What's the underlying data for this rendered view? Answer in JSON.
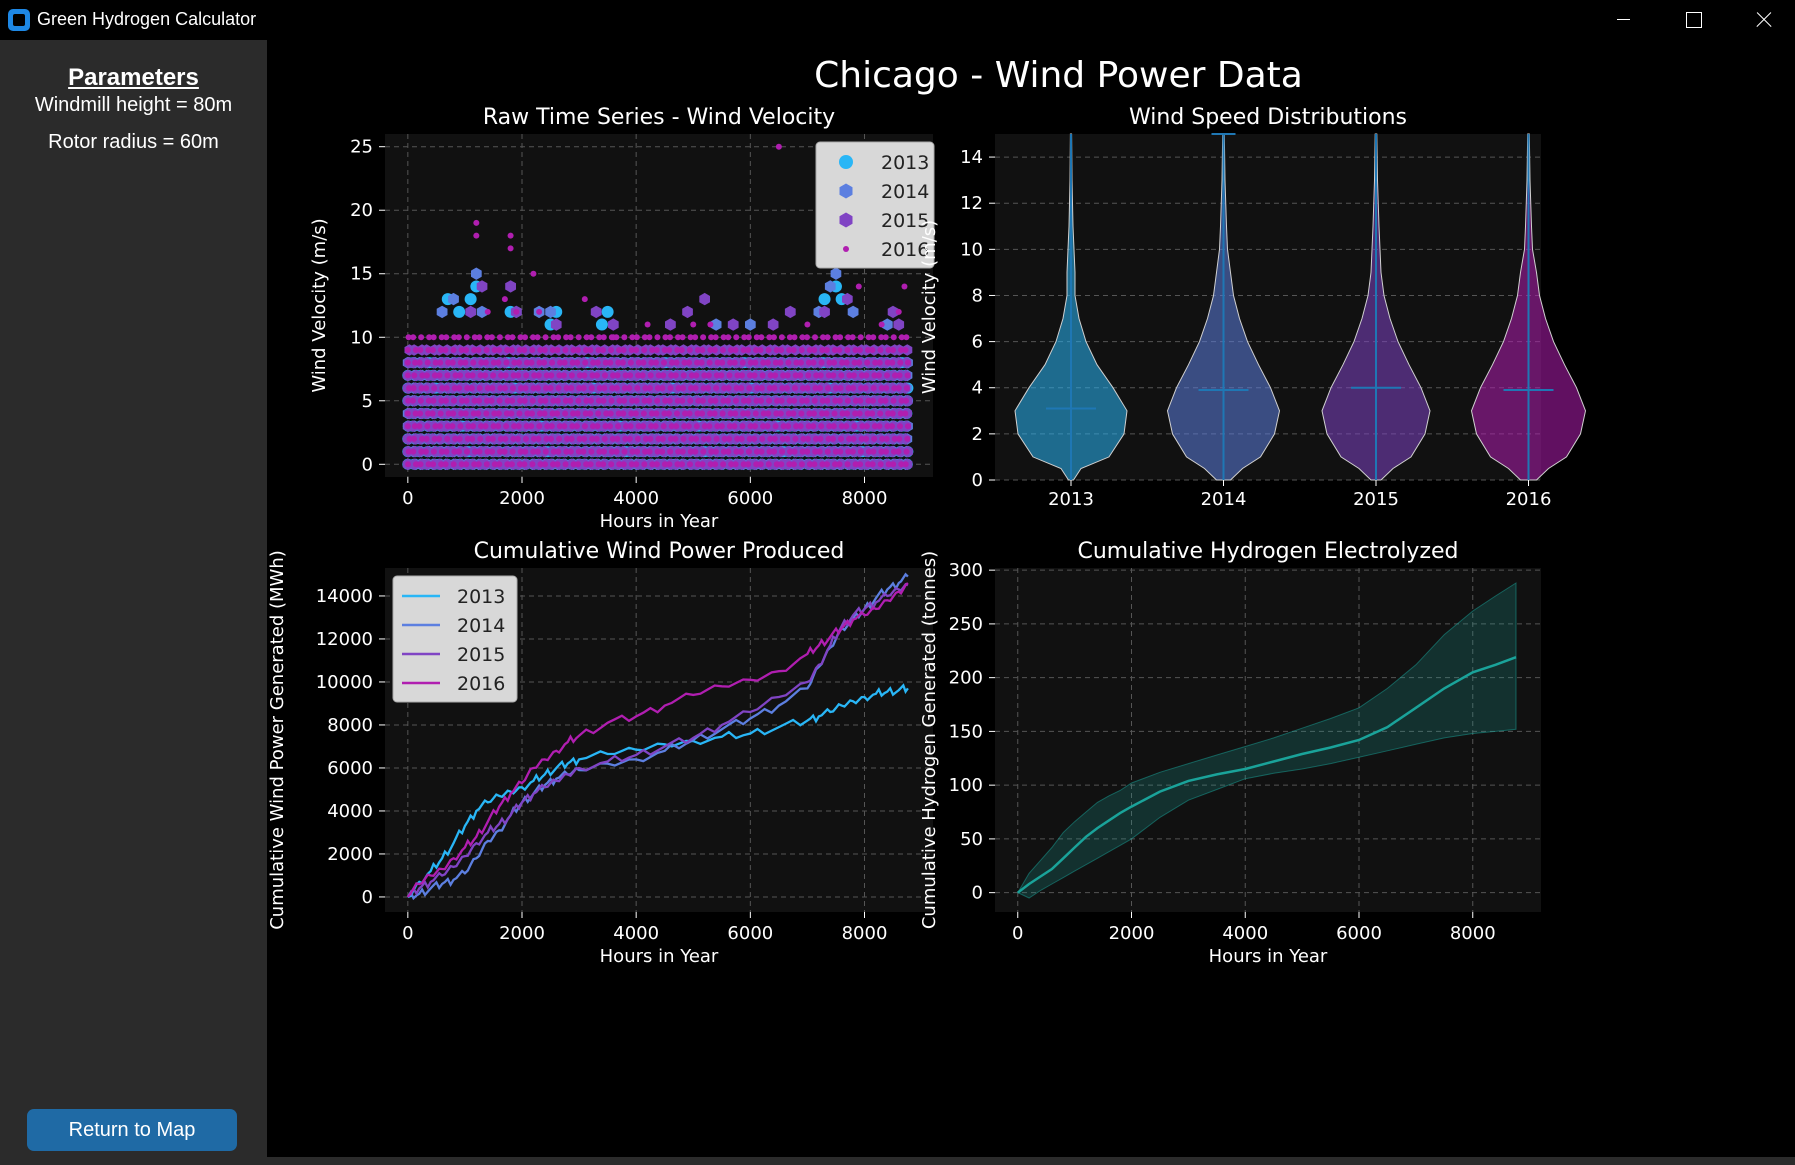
{
  "window": {
    "title": "Green Hydrogen Calculator"
  },
  "sidebar": {
    "heading": "Parameters",
    "params": [
      "Windmill height = 80m",
      "Rotor radius = 60m"
    ],
    "return_button": "Return to Map"
  },
  "figure": {
    "title": "Chicago - Wind Power Data"
  },
  "colors": {
    "2013": "#29b6f6",
    "2014": "#5c7fe0",
    "2015": "#8044c4",
    "2016": "#b01eb0",
    "hydrogen": "#1aa39a",
    "plot_bg": "#111111"
  },
  "chart_data": [
    {
      "type": "scatter",
      "title": "Raw Time Series - Wind Velocity",
      "xlabel": "Hours in Year",
      "ylabel": "Wind Velocity (m/s)",
      "xlim": [
        -400,
        9200
      ],
      "ylim": [
        -1,
        26
      ],
      "xticks": [
        "0",
        "2000",
        "4000",
        "6000",
        "8000"
      ],
      "yticks": [
        "0",
        "5",
        "10",
        "15",
        "20",
        "25"
      ],
      "legend_position": "top-right",
      "grid": true,
      "series": [
        {
          "name": "2013",
          "marker": "circle",
          "band_max": 8,
          "outliers": [
            [
              700,
              13
            ],
            [
              900,
              12
            ],
            [
              1100,
              13
            ],
            [
              1200,
              14
            ],
            [
              1800,
              12
            ],
            [
              2500,
              11
            ],
            [
              2600,
              12
            ],
            [
              3400,
              11
            ],
            [
              3500,
              12
            ],
            [
              7300,
              13
            ],
            [
              7500,
              14
            ],
            [
              7600,
              13
            ]
          ]
        },
        {
          "name": "2014",
          "marker": "hexagon",
          "band_max": 8,
          "outliers": [
            [
              600,
              12
            ],
            [
              800,
              13
            ],
            [
              1200,
              15
            ],
            [
              1300,
              12
            ],
            [
              1900,
              12
            ],
            [
              2300,
              12
            ],
            [
              2500,
              12
            ],
            [
              5400,
              11
            ],
            [
              6000,
              11
            ],
            [
              7200,
              12
            ],
            [
              7400,
              14
            ],
            [
              7500,
              15
            ],
            [
              7800,
              12
            ],
            [
              8400,
              11
            ]
          ]
        },
        {
          "name": "2015",
          "marker": "hexagon",
          "band_max": 9,
          "outliers": [
            [
              1100,
              12
            ],
            [
              1300,
              14
            ],
            [
              1800,
              14
            ],
            [
              1900,
              12
            ],
            [
              2600,
              11
            ],
            [
              3300,
              12
            ],
            [
              3600,
              11
            ],
            [
              4600,
              11
            ],
            [
              4900,
              12
            ],
            [
              5200,
              13
            ],
            [
              5700,
              11
            ],
            [
              6400,
              11
            ],
            [
              6700,
              12
            ],
            [
              7300,
              12
            ],
            [
              7700,
              13
            ],
            [
              7900,
              16
            ],
            [
              8500,
              12
            ],
            [
              8600,
              11
            ]
          ]
        },
        {
          "name": "2016",
          "marker": "dot",
          "band_max": 10,
          "outliers": [
            [
              1200,
              19
            ],
            [
              1200,
              18
            ],
            [
              1800,
              18
            ],
            [
              1800,
              17
            ],
            [
              2200,
              15
            ],
            [
              1700,
              13
            ],
            [
              1900,
              12
            ],
            [
              3100,
              13
            ],
            [
              4200,
              11
            ],
            [
              5000,
              11
            ],
            [
              5300,
              11
            ],
            [
              6500,
              25
            ],
            [
              7000,
              11
            ],
            [
              7900,
              14
            ],
            [
              8300,
              11
            ],
            [
              8600,
              12
            ],
            [
              8700,
              14
            ],
            [
              1400,
              12
            ],
            [
              2300,
              12
            ],
            [
              3600,
              10
            ]
          ]
        }
      ]
    },
    {
      "type": "violin",
      "title": "Wind Speed Distributions",
      "xlabel": "",
      "ylabel": "Wind Velocity (m/s)",
      "categories": [
        "2013",
        "2014",
        "2015",
        "2016"
      ],
      "ylim": [
        0,
        15
      ],
      "yticks": [
        "0",
        "2",
        "4",
        "6",
        "8",
        "10",
        "12",
        "14"
      ],
      "grid": true,
      "medians": [
        3.1,
        3.9,
        4.0,
        3.9
      ],
      "tops": [
        15,
        15,
        15,
        15
      ]
    },
    {
      "type": "line",
      "title": "Cumulative Wind Power Produced",
      "xlabel": "Hours in Year",
      "ylabel": "Cumulative Wind Power Generated (MWh)",
      "xlim": [
        -400,
        9200
      ],
      "ylim": [
        -700,
        15300
      ],
      "xticks": [
        "0",
        "2000",
        "4000",
        "6000",
        "8000"
      ],
      "yticks": [
        "0",
        "2000",
        "4000",
        "6000",
        "8000",
        "10000",
        "12000",
        "14000"
      ],
      "legend_position": "top-left",
      "grid": true,
      "x": [
        0,
        200,
        400,
        600,
        800,
        1000,
        1200,
        1400,
        1600,
        1800,
        2000,
        2200,
        2400,
        2600,
        2800,
        3000,
        3500,
        4000,
        4500,
        5000,
        5500,
        6000,
        6500,
        7000,
        7200,
        7400,
        7600,
        7800,
        8000,
        8200,
        8400,
        8600,
        8760
      ],
      "series": [
        {
          "name": "2013",
          "values": [
            0,
            700,
            1200,
            1800,
            2500,
            3300,
            4000,
            4400,
            4700,
            4900,
            5100,
            5400,
            5700,
            6000,
            6200,
            6400,
            6650,
            6850,
            7100,
            7250,
            7450,
            7600,
            7900,
            8200,
            8400,
            8600,
            8900,
            9100,
            9300,
            9450,
            9550,
            9620,
            9700
          ]
        },
        {
          "name": "2014",
          "values": [
            0,
            150,
            400,
            600,
            800,
            1100,
            1800,
            2600,
            3100,
            3800,
            4400,
            4800,
            5200,
            5500,
            5700,
            5900,
            6200,
            6400,
            6800,
            7300,
            7800,
            8300,
            8900,
            9700,
            10700,
            11600,
            12500,
            12900,
            13400,
            13900,
            14300,
            14600,
            14900
          ]
        },
        {
          "name": "2015",
          "values": [
            0,
            400,
            700,
            1000,
            1400,
            1900,
            2500,
            3000,
            3400,
            3800,
            4400,
            4800,
            5100,
            5400,
            5700,
            6000,
            6300,
            6600,
            7000,
            7400,
            8000,
            8600,
            9300,
            10000,
            10800,
            11700,
            12600,
            13100,
            13400,
            13700,
            14000,
            14300,
            14500
          ]
        },
        {
          "name": "2016",
          "values": [
            0,
            600,
            1000,
            1300,
            1800,
            2300,
            2800,
            3500,
            4200,
            4800,
            5300,
            6000,
            6400,
            6800,
            7200,
            7500,
            8100,
            8400,
            8900,
            9400,
            9800,
            10100,
            10500,
            11300,
            11700,
            12100,
            12500,
            12900,
            13100,
            13400,
            13800,
            14200,
            14600
          ]
        }
      ]
    },
    {
      "type": "area",
      "title": "Cumulative Hydrogen Electrolyzed",
      "xlabel": "Hours in Year",
      "ylabel": "Cumulative Hydrogen Generated (tonnes)",
      "xlim": [
        -400,
        9200
      ],
      "ylim": [
        -18,
        302
      ],
      "xticks": [
        "0",
        "2000",
        "4000",
        "6000",
        "8000"
      ],
      "yticks": [
        "0",
        "50",
        "100",
        "150",
        "200",
        "250",
        "300"
      ],
      "grid": true,
      "x": [
        0,
        200,
        400,
        600,
        800,
        1000,
        1200,
        1400,
        1600,
        1800,
        2000,
        2500,
        3000,
        3500,
        4000,
        4500,
        5000,
        5500,
        6000,
        6500,
        7000,
        7500,
        8000,
        8400,
        8760
      ],
      "mean": [
        0,
        8,
        15,
        22,
        32,
        42,
        52,
        60,
        67,
        74,
        80,
        94,
        104,
        110,
        115,
        122,
        129,
        135,
        142,
        154,
        172,
        190,
        205,
        212,
        219
      ],
      "lower": [
        0,
        -5,
        2,
        8,
        14,
        20,
        26,
        32,
        38,
        44,
        50,
        70,
        86,
        96,
        106,
        111,
        115,
        120,
        126,
        132,
        138,
        144,
        148,
        150,
        152
      ],
      "upper": [
        0,
        18,
        30,
        42,
        56,
        66,
        75,
        84,
        90,
        95,
        102,
        112,
        120,
        128,
        136,
        144,
        153,
        162,
        172,
        190,
        212,
        240,
        262,
        276,
        288
      ]
    }
  ]
}
